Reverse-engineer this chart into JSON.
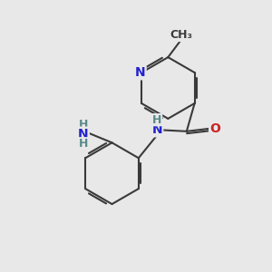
{
  "background_color": "#e8e8e8",
  "bond_color": "#3a3a3a",
  "bond_width": 1.5,
  "N_color": "#2222cc",
  "O_color": "#cc2222",
  "NH_color": "#5a8a8a",
  "font_size_atom": 10,
  "figsize": [
    3.0,
    3.0
  ],
  "dpi": 100,
  "xlim": [
    0,
    10
  ],
  "ylim": [
    0,
    10
  ]
}
